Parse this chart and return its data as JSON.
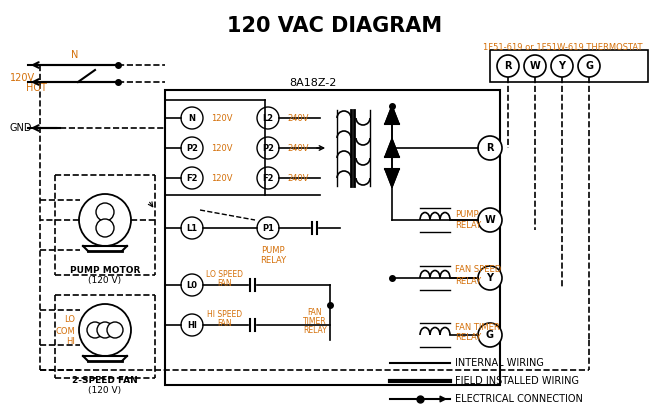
{
  "title": "120 VAC DIAGRAM",
  "bg_color": "#ffffff",
  "line_color": "#000000",
  "orange_color": "#d4700a",
  "thermostat_label": "1F51-619 or 1F51W-619 THERMOSTAT",
  "box_label": "8A18Z-2",
  "terminal_labels": [
    "R",
    "W",
    "Y",
    "G"
  ],
  "pump_motor_label": "PUMP MOTOR",
  "pump_motor_label2": "(120 V)",
  "fan_label": "2-SPEED FAN",
  "fan_label2": "(120 V)",
  "left_N": "N",
  "left_120V": "120V",
  "left_HOT": "HOT",
  "left_GND": "GND",
  "com_label": "COM",
  "lo_label": "LO",
  "hi_label": "HI",
  "legend_internal": "INTERNAL WIRING",
  "legend_field": "FIELD INSTALLED WIRING",
  "legend_elec": "ELECTRICAL CONNECTION",
  "figw": 6.7,
  "figh": 4.19,
  "dpi": 100
}
